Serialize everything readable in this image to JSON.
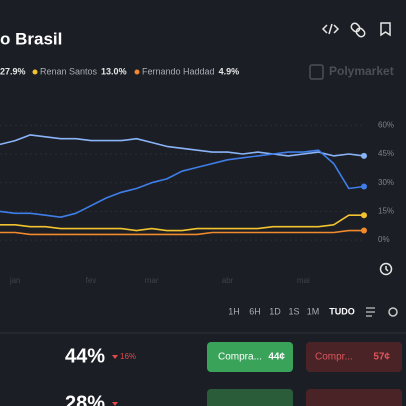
{
  "header": {
    "title": "o Brasil",
    "watermark": "Polymarket"
  },
  "legend": [
    {
      "label": "27.9%",
      "color": "#4c8df5"
    },
    {
      "name": "Renan Santos",
      "label": "13.0%",
      "color": "#f2c230"
    },
    {
      "name": "Fernando Haddad",
      "label": "4.9%",
      "color": "#f08a2c"
    }
  ],
  "chart_data": {
    "type": "line",
    "categories": [
      null,
      "jan",
      null,
      null,
      null,
      null,
      "fev",
      null,
      null,
      null,
      "mar",
      null,
      null,
      null,
      null,
      "abr",
      null,
      null,
      null,
      null,
      "mai",
      null,
      null,
      null,
      null
    ],
    "series": [
      {
        "color": "#8ab4f8",
        "values": [
          50,
          52,
          55,
          54,
          53,
          53,
          52,
          52,
          52,
          53,
          51,
          49,
          48,
          47,
          46,
          46,
          45,
          46,
          45,
          44,
          45,
          46,
          44,
          45,
          44
        ]
      },
      {
        "color": "#3f7ee8",
        "values": [
          15,
          14,
          14,
          13,
          12,
          14,
          18,
          22,
          25,
          27,
          30,
          32,
          36,
          38,
          40,
          42,
          43,
          44,
          45,
          46,
          46,
          47,
          40,
          27,
          28
        ]
      },
      {
        "name": "Renan Santos",
        "color": "#f2c230",
        "values": [
          8,
          8,
          7,
          7,
          6,
          6,
          6,
          6,
          6,
          5,
          6,
          5,
          5,
          6,
          6,
          6,
          6,
          6,
          7,
          7,
          7,
          7,
          8,
          13,
          13
        ]
      },
      {
        "name": "Fernando Haddad",
        "color": "#f08a2c",
        "values": [
          4,
          4,
          3,
          3,
          3,
          3,
          3,
          3,
          3,
          3,
          3,
          3,
          3,
          3,
          4,
          4,
          4,
          4,
          4,
          4,
          4,
          4,
          4,
          5,
          5
        ]
      }
    ],
    "ylim": [
      -13,
      68
    ],
    "yticks": [
      {
        "value": 0,
        "label": "0%"
      },
      {
        "value": 15,
        "label": "15%"
      },
      {
        "value": 30,
        "label": "30%"
      },
      {
        "value": 45,
        "label": "45%"
      },
      {
        "value": 60,
        "label": "60%"
      }
    ],
    "grid": true
  },
  "timeframes": [
    "1H",
    "6H",
    "1D",
    "1S",
    "1M",
    "TUDO"
  ],
  "selected_timeframe": 5,
  "outcomes": [
    {
      "percent": "44%",
      "change": "16%",
      "buy_yes": "Compra...",
      "price_yes": "44¢",
      "buy_no": "Compr...",
      "price_no": "57¢"
    },
    {
      "percent": "28%"
    }
  ]
}
